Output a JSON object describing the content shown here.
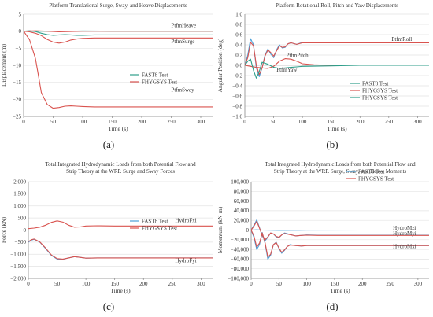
{
  "colors": {
    "blue": "#4a9fd8",
    "red": "#d9534f",
    "green": "#2e9e8a",
    "grid": "#e3e3e3",
    "axis": "#888888"
  },
  "captions": {
    "a": "(a)",
    "b": "(b)",
    "c": "(c)",
    "d": "(d)"
  },
  "chart_data": [
    {
      "type": "line",
      "title": "Platform Translational Surge, Sway, and Heave Displacements",
      "xlabel": "Time (s)",
      "ylabel": "Displacement (m)",
      "xlim": [
        0,
        320
      ],
      "ylim": [
        -25,
        5
      ],
      "xticks": [
        0,
        50,
        100,
        150,
        200,
        250,
        300
      ],
      "yticks": [
        5,
        0,
        -5,
        -10,
        -15,
        -20,
        -25
      ],
      "ytick_labels": [
        "5",
        "0",
        "−5",
        "−10",
        "−15",
        "−20",
        "−25"
      ],
      "legend": {
        "position": "center-right",
        "entries": [
          {
            "label": "FAST8 Test",
            "color": "#2e9e8a"
          },
          {
            "label": "FHYGSYS Test",
            "color": "#d9534f"
          }
        ]
      },
      "annotations": [
        {
          "text": "PtfmHeave",
          "x": 250,
          "y": 1.2
        },
        {
          "text": "PtfmSurge",
          "x": 250,
          "y": -3.5
        },
        {
          "text": "PtfmSway",
          "x": 250,
          "y": -17.7
        }
      ],
      "series": [
        {
          "label_ref": "PtfmHeave",
          "color": "#2e9e8a",
          "x": [
            0,
            20,
            40,
            60,
            80,
            100,
            150,
            200,
            250,
            320
          ],
          "y": [
            0,
            0,
            0,
            -0.1,
            0,
            0.05,
            0,
            0,
            0,
            0
          ]
        },
        {
          "label_ref": "PtfmHeave",
          "color": "#d9534f",
          "x": [
            0,
            20,
            40,
            60,
            80,
            100,
            150,
            200,
            250,
            320
          ],
          "y": [
            0,
            0.1,
            0,
            -0.2,
            -0.1,
            0,
            0,
            0,
            0,
            0
          ]
        },
        {
          "label_ref": "PtfmSurge",
          "color": "#2e9e8a",
          "x": [
            0,
            10,
            20,
            30,
            40,
            50,
            60,
            70,
            80,
            90,
            100,
            120,
            150,
            200,
            250,
            320
          ],
          "y": [
            0,
            0.1,
            -0.1,
            -0.6,
            -1.0,
            -1.2,
            -1.1,
            -1.0,
            -1.1,
            -1.2,
            -1.2,
            -1.1,
            -1.1,
            -1.1,
            -1.1,
            -1.1
          ]
        },
        {
          "label_ref": "PtfmSurge",
          "color": "#d9534f",
          "x": [
            0,
            10,
            20,
            30,
            40,
            50,
            60,
            70,
            80,
            90,
            100,
            120,
            150,
            200,
            250,
            320
          ],
          "y": [
            0,
            -0.2,
            -0.6,
            -1.3,
            -2.4,
            -3.2,
            -3.5,
            -3.2,
            -2.6,
            -2.3,
            -2.1,
            -2.0,
            -2.0,
            -2.0,
            -2.0,
            -2.0
          ]
        },
        {
          "label_ref": "PtfmSway",
          "color": "#d9534f",
          "x": [
            0,
            10,
            20,
            25,
            30,
            40,
            50,
            60,
            70,
            80,
            90,
            100,
            120,
            150,
            200,
            250,
            320
          ],
          "y": [
            0,
            -2.5,
            -8,
            -13,
            -18,
            -21.5,
            -22.6,
            -22.4,
            -22.0,
            -21.9,
            -22.0,
            -22.1,
            -22.2,
            -22.2,
            -22.2,
            -22.2,
            -22.2
          ]
        }
      ]
    },
    {
      "type": "line",
      "title": "Platform Rotational Roll, Pitch and Yaw Displacements",
      "xlabel": "Time (s)",
      "ylabel": "Angular Position (deg)",
      "xlim": [
        0,
        320
      ],
      "ylim": [
        -1.0,
        1.0
      ],
      "xticks": [
        0,
        50,
        100,
        150,
        200,
        250,
        300
      ],
      "yticks": [
        1.0,
        0.8,
        0.6,
        0.4,
        0.2,
        0.0,
        -0.2,
        -0.4,
        -0.6,
        -0.8,
        -1.0
      ],
      "ytick_labels": [
        "1.0",
        "0.8",
        "0.6",
        "0.4",
        "0.2",
        "0.0",
        "−0.2",
        "−0.4",
        "−0.6",
        "−0.8",
        "−1.0"
      ],
      "legend": {
        "position": "center-right",
        "entries": [
          {
            "label": "FAST8 Test",
            "color": "#2e9e8a"
          },
          {
            "label": "FHYGSYS Test",
            "color": "#d9534f"
          },
          {
            "label": "FHYGSYS Test",
            "color": "#2e9e8a"
          }
        ]
      },
      "annotations": [
        {
          "text": "PtfmRoll",
          "x": 255,
          "y": 0.48
        },
        {
          "text": "PtfmPitch",
          "x": 72,
          "y": 0.16
        },
        {
          "text": "PtfmYaw",
          "x": 55,
          "y": -0.12
        }
      ],
      "series": [
        {
          "label_ref": "PtfmRoll",
          "color": "#4a9fd8",
          "x": [
            0,
            5,
            10,
            15,
            20,
            25,
            30,
            35,
            40,
            45,
            50,
            55,
            60,
            65,
            70,
            75,
            80,
            90,
            100,
            110,
            120,
            150,
            200,
            250,
            320
          ],
          "y": [
            0,
            0.2,
            0.52,
            0.4,
            -0.05,
            -0.22,
            -0.05,
            0.2,
            0.32,
            0.22,
            0.15,
            0.3,
            0.4,
            0.34,
            0.35,
            0.42,
            0.44,
            0.41,
            0.45,
            0.44,
            0.44,
            0.44,
            0.44,
            0.44,
            0.44
          ]
        },
        {
          "label_ref": "PtfmRoll",
          "color": "#d9534f",
          "x": [
            0,
            5,
            10,
            15,
            20,
            25,
            30,
            35,
            40,
            45,
            50,
            55,
            60,
            65,
            70,
            75,
            80,
            90,
            100,
            110,
            120,
            150,
            200,
            250,
            320
          ],
          "y": [
            0,
            0.15,
            0.45,
            0.38,
            0.0,
            -0.18,
            -0.05,
            0.18,
            0.3,
            0.25,
            0.18,
            0.28,
            0.38,
            0.35,
            0.36,
            0.42,
            0.44,
            0.41,
            0.44,
            0.44,
            0.44,
            0.44,
            0.44,
            0.44,
            0.44
          ]
        },
        {
          "label_ref": "PtfmPitch",
          "color": "#d9534f",
          "x": [
            0,
            10,
            20,
            30,
            40,
            50,
            60,
            70,
            80,
            90,
            100,
            120,
            150,
            200,
            250,
            320
          ],
          "y": [
            0,
            -0.02,
            -0.04,
            -0.05,
            -0.06,
            -0.02,
            0.08,
            0.13,
            0.12,
            0.08,
            0.03,
            0.01,
            0.0,
            0.0,
            0.0,
            0.0
          ]
        },
        {
          "label_ref": "PtfmYaw",
          "color": "#2e9e8a",
          "x": [
            0,
            5,
            10,
            15,
            20,
            25,
            30,
            40,
            50,
            60,
            70,
            80,
            90,
            100,
            150,
            200,
            250,
            320
          ],
          "y": [
            0,
            0.08,
            0.12,
            -0.1,
            -0.25,
            -0.12,
            0.06,
            0.02,
            -0.04,
            -0.06,
            -0.05,
            -0.04,
            -0.03,
            -0.02,
            -0.01,
            0.0,
            0.0,
            0.0
          ]
        }
      ]
    },
    {
      "type": "line",
      "title": "Total Integrated Hydrodynamic Loads from both Potential Flow and Strip Theory at the WRP. Surge and Sway Forces",
      "title_lines": [
        "Total Integrated Hydrodynamic Loads from both Potential Flow and",
        "Strip Theory at the WRP. Surge and Sway Forces"
      ],
      "xlabel": "Time (s)",
      "ylabel": "Force (kN)",
      "xlim": [
        0,
        320
      ],
      "ylim": [
        -2000,
        2000
      ],
      "xticks": [
        0,
        50,
        100,
        150,
        200,
        250,
        300
      ],
      "yticks": [
        2000,
        1500,
        1000,
        500,
        0,
        -500,
        -1000,
        -1500,
        -2000
      ],
      "ytick_labels": [
        "2,000",
        "1,500",
        "1,000",
        "500",
        "0",
        "−500",
        "−1,000",
        "−1,500",
        "−2,000"
      ],
      "legend": {
        "position": "center-right",
        "entries": [
          {
            "label": "FAST8 Test",
            "color": "#4a9fd8"
          },
          {
            "label": "FHYGSYS Test",
            "color": "#d9534f"
          }
        ]
      },
      "annotations": [
        {
          "text": "HydroFxi",
          "x": 255,
          "y": 330
        },
        {
          "text": "HydroFyi",
          "x": 255,
          "y": -1330
        }
      ],
      "series": [
        {
          "label_ref": "HydroFxi",
          "color": "#d9534f",
          "x": [
            0,
            10,
            20,
            30,
            40,
            50,
            60,
            70,
            80,
            90,
            100,
            120,
            150,
            200,
            250,
            320
          ],
          "y": [
            60,
            80,
            120,
            200,
            320,
            380,
            330,
            200,
            120,
            130,
            170,
            180,
            170,
            170,
            170,
            170
          ]
        },
        {
          "label_ref": "HydroFyi",
          "color": "#4a9fd8",
          "x": [
            0,
            5,
            10,
            20,
            30,
            40,
            50,
            60,
            70,
            80,
            90,
            100,
            120,
            150,
            200,
            250,
            320
          ],
          "y": [
            -500,
            -420,
            -380,
            -500,
            -760,
            -1050,
            -1200,
            -1210,
            -1150,
            -1100,
            -1130,
            -1160,
            -1150,
            -1150,
            -1150,
            -1150,
            -1150
          ]
        },
        {
          "label_ref": "HydroFyi",
          "color": "#d9534f",
          "x": [
            0,
            5,
            10,
            20,
            30,
            40,
            50,
            60,
            70,
            80,
            90,
            100,
            120,
            150,
            200,
            250,
            320
          ],
          "y": [
            -480,
            -400,
            -370,
            -490,
            -740,
            -1030,
            -1180,
            -1200,
            -1150,
            -1100,
            -1130,
            -1160,
            -1150,
            -1150,
            -1150,
            -1150,
            -1150
          ]
        }
      ]
    },
    {
      "type": "line",
      "title": "Total Integrated Hydrodynamic Loads from both Potential Flow and Strip Theory at the WRP. Surge, Sway, and Heave Moments",
      "title_lines": [
        "Total Integrated Hydrodynamic Loads from both Potential Flow and",
        "Strip Theory at the WRP. Surge, Sway, and Heave Moments"
      ],
      "xlabel": "Time (s)",
      "ylabel": "Momentum (kN·m)",
      "xlim": [
        0,
        320
      ],
      "ylim": [
        -100000,
        100000
      ],
      "xticks": [
        0,
        50,
        100,
        150,
        200,
        250,
        300
      ],
      "yticks": [
        100000,
        80000,
        60000,
        40000,
        20000,
        0,
        -20000,
        -40000,
        -60000,
        -80000,
        -100000
      ],
      "ytick_labels": [
        "100,000",
        "80,000",
        "60,000",
        "40,000",
        "20,000",
        "0",
        "−20,000",
        "−40,000",
        "−60,000",
        "−80,000",
        "−100,000"
      ],
      "legend": {
        "position": "top-right",
        "entries": [
          {
            "label": "FAST8 Test",
            "color": "#4a9fd8"
          },
          {
            "label": "FHYGSYS Test",
            "color": "#d9534f"
          }
        ]
      },
      "annotations": [
        {
          "text": "HydroMzi",
          "x": 255,
          "y": 1000
        },
        {
          "text": "HydroMyi",
          "x": 255,
          "y": -10500
        },
        {
          "text": "HydroMxi",
          "x": 255,
          "y": -37000
        }
      ],
      "series": [
        {
          "label_ref": "HydroMzi",
          "color": "#4a9fd8",
          "x": [
            0,
            10,
            20,
            50,
            100,
            200,
            320
          ],
          "y": [
            0,
            500,
            0,
            -500,
            -200,
            0,
            0
          ]
        },
        {
          "label_ref": "HydroMyi",
          "color": "#4a9fd8",
          "x": [
            0,
            5,
            10,
            15,
            20,
            25,
            30,
            35,
            40,
            45,
            50,
            55,
            60,
            70,
            80,
            90,
            100,
            120,
            150,
            200,
            250,
            320
          ],
          "y": [
            0,
            10000,
            21000,
            5000,
            -12000,
            -22000,
            -15000,
            -6000,
            -8000,
            -14000,
            -16000,
            -10000,
            -6000,
            -9000,
            -12000,
            -11000,
            -10000,
            -10500,
            -10500,
            -10500,
            -10500,
            -10500
          ]
        },
        {
          "label_ref": "HydroMyi",
          "color": "#d9534f",
          "x": [
            0,
            5,
            10,
            15,
            20,
            25,
            30,
            35,
            40,
            45,
            50,
            55,
            60,
            70,
            80,
            90,
            100,
            120,
            150,
            200,
            250,
            320
          ],
          "y": [
            0,
            8000,
            18000,
            4000,
            -11000,
            -20000,
            -14000,
            -6000,
            -8000,
            -13000,
            -15000,
            -10000,
            -7000,
            -9500,
            -12000,
            -11000,
            -10500,
            -11000,
            -11000,
            -11000,
            -11000,
            -11000
          ]
        },
        {
          "label_ref": "HydroMxi",
          "color": "#4a9fd8",
          "x": [
            0,
            5,
            10,
            15,
            20,
            25,
            30,
            35,
            40,
            45,
            50,
            55,
            60,
            65,
            70,
            80,
            90,
            100,
            120,
            150,
            200,
            250,
            320
          ],
          "y": [
            0,
            -15000,
            -40000,
            -30000,
            -5000,
            -28000,
            -60000,
            -52000,
            -30000,
            -25000,
            -38000,
            -48000,
            -42000,
            -34000,
            -30000,
            -32000,
            -33000,
            -32000,
            -32000,
            -32000,
            -32000,
            -32000,
            -32000
          ]
        },
        {
          "label_ref": "HydroMxi",
          "color": "#d9534f",
          "x": [
            0,
            5,
            10,
            15,
            20,
            25,
            30,
            35,
            40,
            45,
            50,
            55,
            60,
            65,
            70,
            80,
            90,
            100,
            120,
            150,
            200,
            250,
            320
          ],
          "y": [
            0,
            -12000,
            -35000,
            -27000,
            -6000,
            -26000,
            -56000,
            -50000,
            -30000,
            -26000,
            -37000,
            -46000,
            -41000,
            -34000,
            -31000,
            -32000,
            -33000,
            -32000,
            -32000,
            -32000,
            -32000,
            -32000,
            -32000
          ]
        }
      ]
    }
  ]
}
